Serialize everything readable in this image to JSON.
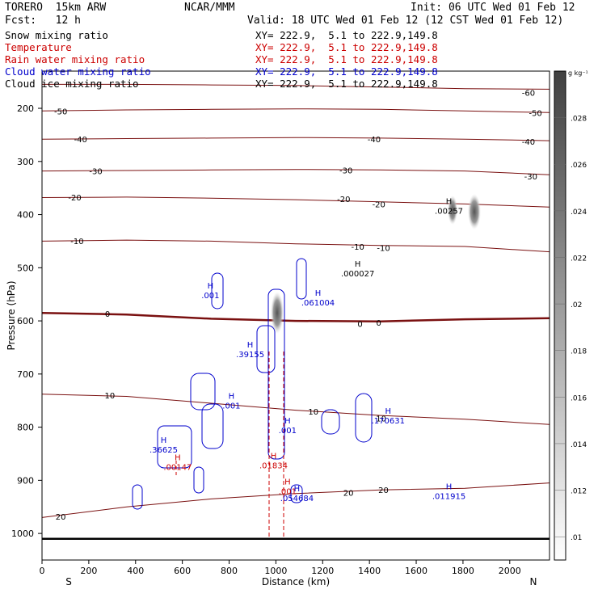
{
  "header": {
    "model": "TORERO  15km ARW",
    "org": "NCAR/MMM",
    "init": "Init: 06 UTC Wed 01 Feb 12",
    "fcst": "Fcst:   12 h",
    "valid": "Valid: 18 UTC Wed 01 Feb 12 (12 CST Wed 01 Feb 12)"
  },
  "legend": [
    {
      "label": "Snow mixing ratio",
      "xy": "XY= 222.9,  5.1 to 222.9,149.8",
      "color": "#000000",
      "xy_color": "#000000"
    },
    {
      "label": "Temperature",
      "xy": "XY= 222.9,  5.1 to 222.9,149.8",
      "color": "#cc0000",
      "xy_color": "#cc0000"
    },
    {
      "label": "Rain water mixing ratio",
      "xy": "XY= 222.9,  5.1 to 222.9,149.8",
      "color": "#cc0000",
      "xy_color": "#cc0000"
    },
    {
      "label": "Cloud water mixing ratio",
      "xy": "XY= 222.9,  5.1 to 222.9,149.8",
      "color": "#0000cc",
      "xy_color": "#0000cc"
    },
    {
      "label": "Cloud ice mixing ratio",
      "xy": "XY= 222.9,  5.1 to 222.9,149.8",
      "color": "#000000",
      "xy_color": "#000000"
    }
  ],
  "chart_data": {
    "type": "cross-section",
    "xlabel": "Distance (km)",
    "ylabel": "Pressure (hPa)",
    "x_ticks": [
      0,
      200,
      400,
      600,
      800,
      1000,
      1200,
      1400,
      1600,
      1800,
      2000
    ],
    "x_tick_labels": [
      "0",
      "200",
      "400",
      "600",
      "800",
      "1000",
      "1200",
      "1400",
      "1600",
      "1800",
      "2000"
    ],
    "y_ticks": [
      200,
      300,
      400,
      500,
      600,
      700,
      800,
      900,
      1000
    ],
    "y_tick_labels": [
      "200",
      "300",
      "400",
      "500",
      "600",
      "700",
      "800",
      "900",
      "1000"
    ],
    "xlim": [
      0,
      2170
    ],
    "ylim": [
      1050,
      130
    ],
    "left_end": "S",
    "right_end": "N",
    "colorbar": {
      "unit": "g kg⁻¹",
      "levels": [
        ".01",
        ".012",
        ".014",
        ".016",
        ".018",
        ".02",
        ".022",
        ".024",
        ".026",
        ".028"
      ]
    },
    "temperature_labels": [
      {
        "text": "-60",
        "x": 2080,
        "p": 170
      },
      {
        "text": "-50",
        "x": 80,
        "p": 205
      },
      {
        "text": "-50",
        "x": 2110,
        "p": 208
      },
      {
        "text": "-40",
        "x": 165,
        "p": 258
      },
      {
        "text": "-40",
        "x": 1420,
        "p": 258
      },
      {
        "text": "-40",
        "x": 2080,
        "p": 262
      },
      {
        "text": "-30",
        "x": 230,
        "p": 318
      },
      {
        "text": "-30",
        "x": 1300,
        "p": 316
      },
      {
        "text": "-30",
        "x": 2090,
        "p": 328
      },
      {
        "text": "-20",
        "x": 140,
        "p": 367
      },
      {
        "text": "-20",
        "x": 1290,
        "p": 370
      },
      {
        "text": "-20",
        "x": 1440,
        "p": 380
      },
      {
        "text": "-10",
        "x": 150,
        "p": 449
      },
      {
        "text": "-10",
        "x": 1350,
        "p": 460
      },
      {
        "text": "-10",
        "x": 1460,
        "p": 462
      },
      {
        "text": "0",
        "x": 280,
        "p": 586
      },
      {
        "text": "0",
        "x": 1360,
        "p": 605
      },
      {
        "text": "0",
        "x": 1440,
        "p": 603
      },
      {
        "text": "10",
        "x": 290,
        "p": 740
      },
      {
        "text": "10",
        "x": 1160,
        "p": 770
      },
      {
        "text": "10",
        "x": 1450,
        "p": 783
      },
      {
        "text": "20",
        "x": 80,
        "p": 968
      },
      {
        "text": "20",
        "x": 1310,
        "p": 923
      },
      {
        "text": "20",
        "x": 1460,
        "p": 918
      }
    ],
    "temperature_isotherms": [
      {
        "level": -60,
        "p": [
          155,
          155,
          156,
          157,
          160,
          163,
          164
        ]
      },
      {
        "level": -50,
        "p": [
          205,
          203,
          202,
          201,
          202,
          205,
          208
        ]
      },
      {
        "level": -40,
        "p": [
          258,
          257,
          256,
          255,
          256,
          258,
          261
        ]
      },
      {
        "level": -30,
        "p": [
          318,
          317,
          316,
          315,
          316,
          318,
          325
        ]
      },
      {
        "level": -20,
        "p": [
          368,
          367,
          369,
          372,
          376,
          380,
          386
        ]
      },
      {
        "level": -10,
        "p": [
          450,
          448,
          450,
          455,
          458,
          460,
          470
        ]
      },
      {
        "level": 0,
        "p": [
          585,
          588,
          596,
          600,
          601,
          597,
          595
        ]
      },
      {
        "level": 10,
        "p": [
          738,
          742,
          755,
          768,
          778,
          785,
          795
        ]
      },
      {
        "level": 20,
        "p": [
          970,
          950,
          935,
          925,
          918,
          915,
          905
        ]
      }
    ],
    "cloud_water_max_labels": [
      {
        "text": ".001",
        "x": 720,
        "p": 551
      },
      {
        "text": ".061004",
        "x": 1180,
        "p": 565
      },
      {
        "text": ".39155",
        "x": 890,
        "p": 662
      },
      {
        "text": ".001",
        "x": 810,
        "p": 759
      },
      {
        "text": ".170631",
        "x": 1480,
        "p": 787
      },
      {
        "text": ".001",
        "x": 1050,
        "p": 805
      },
      {
        "text": ".36625",
        "x": 520,
        "p": 842
      },
      {
        "text": ".054684",
        "x": 1090,
        "p": 933
      },
      {
        "text": ".011915",
        "x": 1740,
        "p": 929
      }
    ],
    "rain_water_max_labels": [
      {
        "text": ".00147",
        "x": 580,
        "p": 874
      },
      {
        "text": ".01834",
        "x": 990,
        "p": 871
      },
      {
        "text": ".001",
        "x": 1050,
        "p": 920
      }
    ],
    "cloud_ice_max_labels": [
      {
        "text": ".000027",
        "x": 1350,
        "p": 510
      },
      {
        "text": ".00257",
        "x": 1740,
        "p": 392
      }
    ]
  }
}
